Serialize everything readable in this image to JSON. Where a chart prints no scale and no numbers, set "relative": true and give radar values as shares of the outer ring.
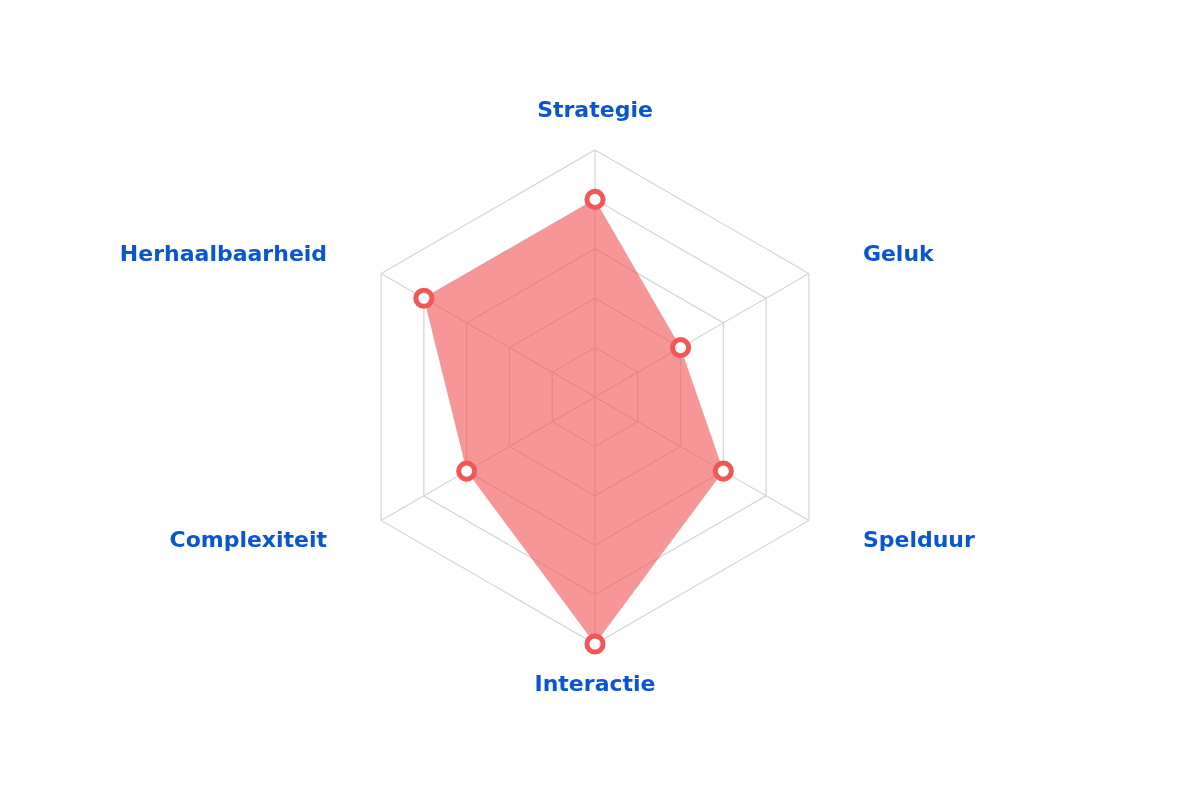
{
  "chart_data": {
    "type": "radar",
    "relative": true,
    "grid": true,
    "marker": "circle",
    "categories": [
      "Strategie",
      "Geluk",
      "Spelduur",
      "Interactie",
      "Complexiteit",
      "Herhaalbaarheid"
    ],
    "series": [
      {
        "color": "#f25656",
        "values": [
          0.8,
          0.4,
          0.6,
          1.0,
          0.6,
          0.8
        ]
      }
    ]
  }
}
